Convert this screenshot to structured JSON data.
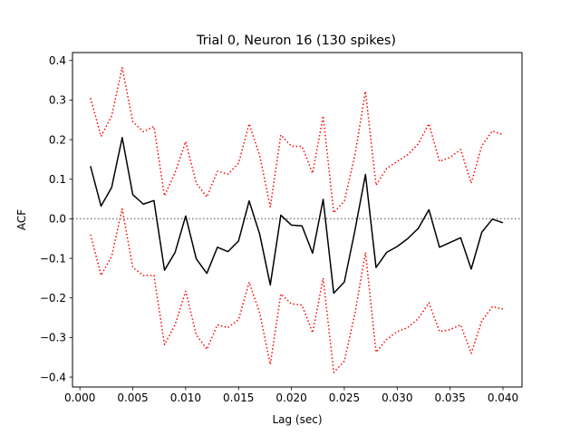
{
  "chart_data": {
    "type": "line",
    "title": "Trial 0, Neuron 16 (130 spikes)",
    "xlabel": "Lag (sec)",
    "ylabel": "ACF",
    "xlim": [
      -0.0007,
      0.0418
    ],
    "ylim": [
      -0.425,
      0.42
    ],
    "xticks": [
      0.0,
      0.005,
      0.01,
      0.015,
      0.02,
      0.025,
      0.03,
      0.035,
      0.04
    ],
    "xtick_labels": [
      "0.000",
      "0.005",
      "0.010",
      "0.015",
      "0.020",
      "0.025",
      "0.030",
      "0.035",
      "0.040"
    ],
    "yticks": [
      -0.4,
      -0.3,
      -0.2,
      -0.1,
      0.0,
      0.1,
      0.2,
      0.3,
      0.4
    ],
    "ytick_labels": [
      "−0.4",
      "−0.3",
      "−0.2",
      "−0.1",
      "0.0",
      "0.1",
      "0.2",
      "0.3",
      "0.4"
    ],
    "grid": false,
    "x": [
      0.001,
      0.002,
      0.003,
      0.004,
      0.005,
      0.006,
      0.007,
      0.008,
      0.009,
      0.01,
      0.011,
      0.012,
      0.013,
      0.014,
      0.015,
      0.016,
      0.017,
      0.018,
      0.019,
      0.02,
      0.021,
      0.022,
      0.023,
      0.024,
      0.025,
      0.026,
      0.027,
      0.028,
      0.029,
      0.03,
      0.031,
      0.032,
      0.033,
      0.034,
      0.035,
      0.036,
      0.037,
      0.038,
      0.039,
      0.04
    ],
    "series": [
      {
        "color": "#000000",
        "style": "solid",
        "values": [
          0.133,
          0.032,
          0.079,
          0.205,
          0.061,
          0.037,
          0.046,
          -0.13,
          -0.085,
          0.007,
          -0.101,
          -0.138,
          -0.072,
          -0.083,
          -0.056,
          0.045,
          -0.039,
          -0.167,
          0.009,
          -0.016,
          -0.018,
          -0.087,
          0.049,
          -0.188,
          -0.16,
          -0.03,
          0.112,
          -0.123,
          -0.085,
          -0.07,
          -0.05,
          -0.024,
          0.023,
          -0.072,
          -0.06,
          -0.048,
          -0.127,
          -0.034,
          -0.001,
          -0.01
        ]
      },
      {
        "color": "#ff0000",
        "style": "dotted",
        "values": [
          0.305,
          0.208,
          0.26,
          0.382,
          0.245,
          0.22,
          0.233,
          0.058,
          0.117,
          0.195,
          0.09,
          0.055,
          0.12,
          0.113,
          0.14,
          0.24,
          0.16,
          0.03,
          0.212,
          0.183,
          0.183,
          0.115,
          0.26,
          0.015,
          0.045,
          0.16,
          0.322,
          0.085,
          0.127,
          0.145,
          0.162,
          0.19,
          0.24,
          0.145,
          0.155,
          0.175,
          0.09,
          0.185,
          0.222,
          0.212
        ]
      },
      {
        "color": "#ff0000",
        "style": "dotted",
        "values": [
          -0.04,
          -0.143,
          -0.095,
          0.025,
          -0.123,
          -0.143,
          -0.143,
          -0.318,
          -0.268,
          -0.183,
          -0.293,
          -0.33,
          -0.268,
          -0.275,
          -0.255,
          -0.16,
          -0.238,
          -0.368,
          -0.19,
          -0.215,
          -0.218,
          -0.288,
          -0.15,
          -0.388,
          -0.36,
          -0.24,
          -0.085,
          -0.337,
          -0.305,
          -0.285,
          -0.275,
          -0.252,
          -0.212,
          -0.285,
          -0.28,
          -0.268,
          -0.34,
          -0.258,
          -0.222,
          -0.228
        ]
      }
    ],
    "reference_line": {
      "y": 0.0,
      "color": "#808080",
      "style": "dotted"
    }
  }
}
